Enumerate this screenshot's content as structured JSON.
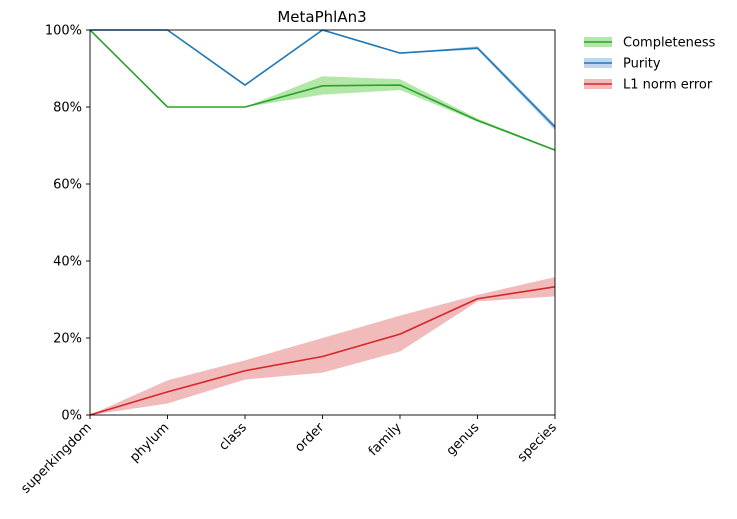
{
  "chart_data": {
    "type": "line",
    "title": "MetaPhlAn3",
    "xlabel": "",
    "ylabel": "",
    "categories": [
      "superkingdom",
      "phylum",
      "class",
      "order",
      "family",
      "genus",
      "species"
    ],
    "ylim": [
      0,
      100
    ],
    "yticks": [
      0,
      20,
      40,
      60,
      80,
      100
    ],
    "ytick_labels": [
      "0%",
      "20%",
      "40%",
      "60%",
      "80%",
      "100%"
    ],
    "grid": false,
    "legend_position": "outside-top-right",
    "series": [
      {
        "name": "Completeness",
        "color": "#2ca02c",
        "band_color": "#98df8a",
        "values": [
          100,
          80,
          80,
          85.5,
          85.7,
          76.5,
          68.8
        ],
        "lower": [
          100,
          80,
          80,
          83.2,
          84.4,
          76.2,
          68.6
        ],
        "upper": [
          100,
          80,
          80,
          88.0,
          87.2,
          77.0,
          69.0
        ]
      },
      {
        "name": "Purity",
        "color": "#1f77b4",
        "band_color": "#aec7e8",
        "values": [
          100,
          100,
          85.7,
          100,
          94.0,
          95.3,
          74.8
        ],
        "lower": [
          100,
          100,
          85.7,
          100,
          94.0,
          94.9,
          73.9
        ],
        "upper": [
          100,
          100,
          85.7,
          100,
          94.0,
          95.8,
          75.5
        ]
      },
      {
        "name": "L1 norm error",
        "color": "#d62728",
        "band_color": "#eca3a4",
        "values": [
          0,
          6.0,
          11.5,
          15.2,
          21.0,
          30.2,
          33.3
        ],
        "lower": [
          0,
          3.0,
          9.2,
          11.0,
          16.5,
          29.5,
          30.8
        ],
        "upper": [
          0,
          9.0,
          14.2,
          20.0,
          25.8,
          31.2,
          35.8
        ]
      }
    ]
  }
}
